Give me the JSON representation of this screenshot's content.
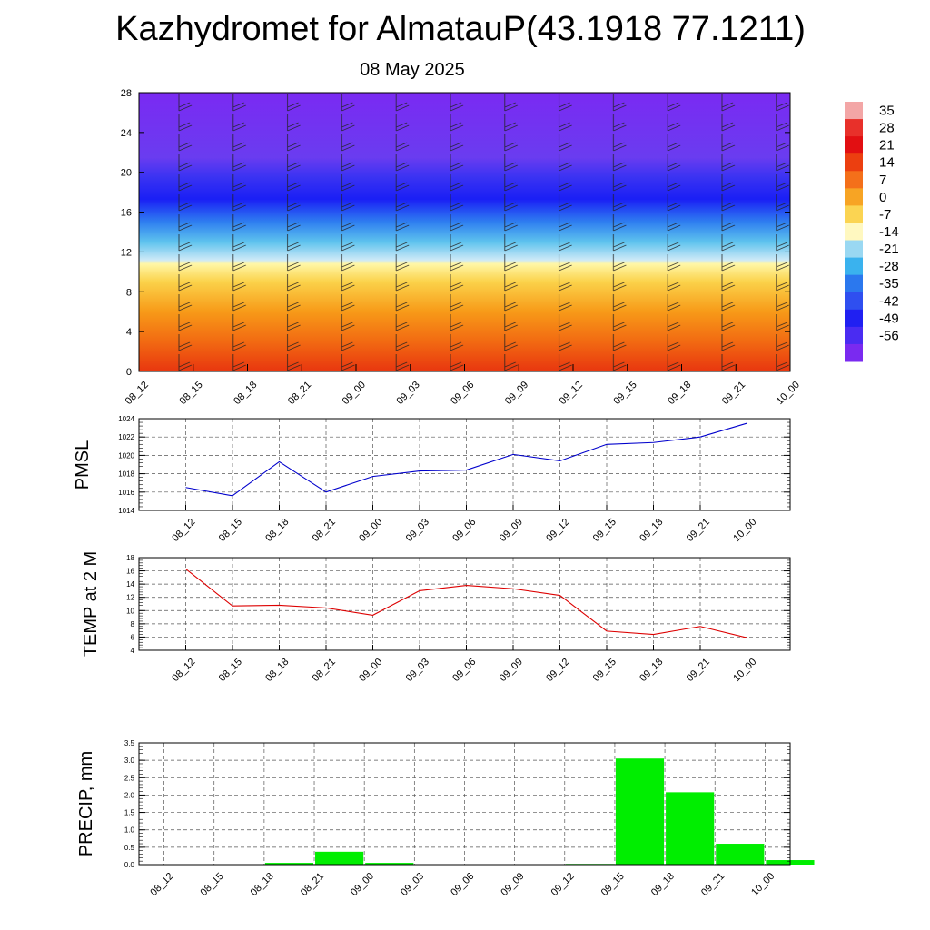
{
  "title": "Kazhydromet for AlmatauP(43.1918 77.1211)",
  "subtitle": "08 May 2025",
  "times": [
    "08_12",
    "08_15",
    "08_18",
    "08_21",
    "09_00",
    "09_03",
    "09_06",
    "09_09",
    "09_12",
    "09_15",
    "09_18",
    "09_21",
    "10_00"
  ],
  "chart_data": [
    {
      "type": "heatmap",
      "name": "cross-section",
      "ylim": [
        0,
        28
      ],
      "y_ticks": [
        "0",
        "4",
        "8",
        "12",
        "16",
        "20",
        "24",
        "28"
      ],
      "x_ticks": [
        "08_12",
        "08_15",
        "08_18",
        "08_21",
        "09_00",
        "09_03",
        "09_06",
        "09_09",
        "09_12",
        "09_15",
        "09_18",
        "09_21",
        "10_00"
      ],
      "color_stops": [
        {
          "y": 0,
          "color": "#e8360f"
        },
        {
          "y": 3,
          "color": "#f26a12"
        },
        {
          "y": 6,
          "color": "#f79a18"
        },
        {
          "y": 9,
          "color": "#fbd24a"
        },
        {
          "y": 10.8,
          "color": "#fff7a8"
        },
        {
          "y": 11.2,
          "color": "#cde9f7"
        },
        {
          "y": 13,
          "color": "#5ec3ee"
        },
        {
          "y": 15,
          "color": "#2f7ff0"
        },
        {
          "y": 17.3,
          "color": "#1a1ff5"
        },
        {
          "y": 19.5,
          "color": "#3a33f2"
        },
        {
          "y": 21.5,
          "color": "#6a3cf0"
        },
        {
          "y": 28,
          "color": "#7a2af2"
        }
      ],
      "colorbar_labels": [
        "35",
        "28",
        "21",
        "14",
        "7",
        "0",
        "-7",
        "-14",
        "-21",
        "-28",
        "-35",
        "-42",
        "-49",
        "-56"
      ],
      "colorbar_colors": [
        "#f3a6a6",
        "#e8302a",
        "#e20f12",
        "#ec3f10",
        "#f4701a",
        "#f7a424",
        "#fbd452",
        "#fff8c0",
        "#9ad8f2",
        "#3ab2ee",
        "#2b78ee",
        "#2f4ff0",
        "#2020f2",
        "#4a2cf2",
        "#7a2af0"
      ],
      "wind_barbs": "present"
    },
    {
      "type": "line",
      "ylabel": "PMSL",
      "categories": [
        "08_12",
        "08_15",
        "08_18",
        "08_21",
        "09_00",
        "09_03",
        "09_06",
        "09_09",
        "09_12",
        "09_15",
        "09_18",
        "09_21",
        "10_00"
      ],
      "ylim": [
        1014,
        1024
      ],
      "y_ticks": [
        "1014",
        "1016",
        "1018",
        "1020",
        "1022",
        "1024"
      ],
      "series": [
        {
          "values": [
            1016.5,
            1015.6,
            1019.3,
            1016.0,
            1017.7,
            1018.3,
            1018.4,
            1020.1,
            1019.4,
            1021.2,
            1021.4,
            1022.0,
            1023.5
          ],
          "color": "#0000cc"
        }
      ],
      "grid": true
    },
    {
      "type": "line",
      "ylabel": "TEMP at 2 M",
      "categories": [
        "08_12",
        "08_15",
        "08_18",
        "08_21",
        "09_00",
        "09_03",
        "09_06",
        "09_09",
        "09_12",
        "09_15",
        "09_18",
        "09_21",
        "10_00"
      ],
      "ylim": [
        4,
        18
      ],
      "y_ticks": [
        "4",
        "6",
        "8",
        "10",
        "12",
        "14",
        "16",
        "18"
      ],
      "series": [
        {
          "values": [
            16.3,
            10.7,
            10.8,
            10.4,
            9.3,
            13.0,
            13.8,
            13.3,
            12.3,
            6.9,
            6.4,
            7.6,
            5.9
          ],
          "color": "#dd0000"
        }
      ],
      "grid": true
    },
    {
      "type": "bar",
      "ylabel": "PRECIP, mm",
      "categories": [
        "08_12",
        "08_15",
        "08_18",
        "08_21",
        "09_00",
        "09_03",
        "09_06",
        "09_09",
        "09_12",
        "09_15",
        "09_18",
        "09_21",
        "10_00"
      ],
      "ylim": [
        0,
        3.5
      ],
      "y_ticks": [
        "0.0",
        "0.5",
        "1.0",
        "1.5",
        "2.0",
        "2.5",
        "3.0",
        "3.5"
      ],
      "bar_x": [
        0.5,
        1.5,
        2.5,
        3.5,
        4.5,
        5.5,
        6.5,
        7.5,
        8.5,
        9.5,
        10.5,
        11.5,
        12.5
      ],
      "values": [
        0.0,
        0.0,
        0.05,
        0.37,
        0.05,
        0.0,
        0.0,
        0.0,
        0.02,
        3.05,
        2.08,
        0.6,
        0.13
      ],
      "color": "#00ee00",
      "grid": true
    }
  ]
}
